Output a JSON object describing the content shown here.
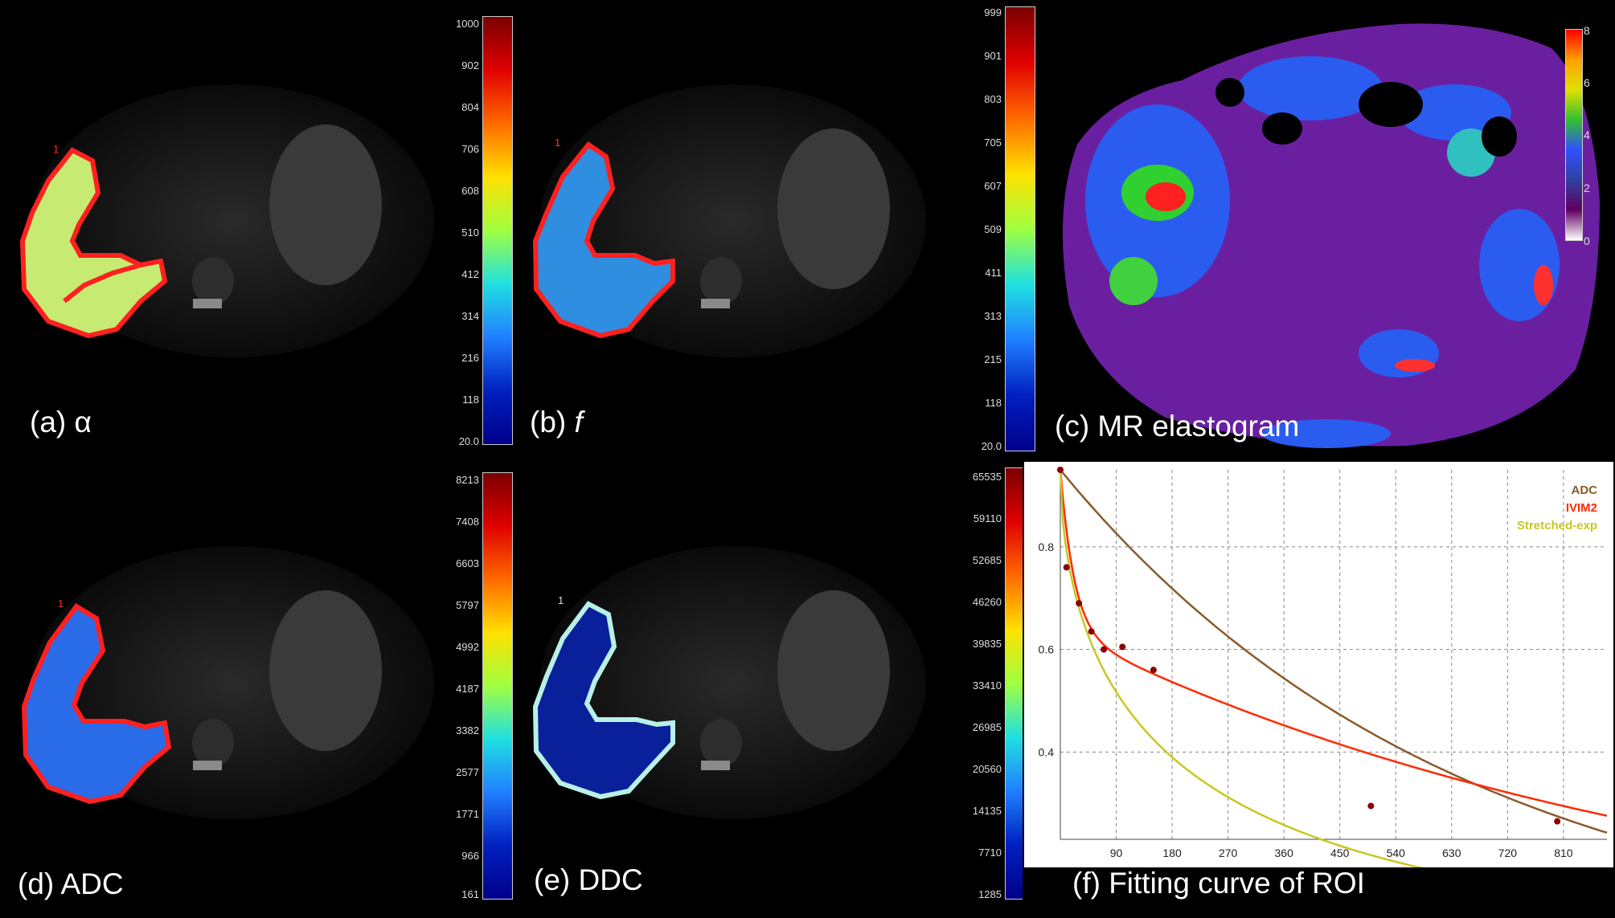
{
  "panels": {
    "a": {
      "label_prefix": "(a) ",
      "label_symbol": "α",
      "roi": "1"
    },
    "b": {
      "label_prefix": "(b) ",
      "label_symbol": "f",
      "roi": "1"
    },
    "c": {
      "label": "(c) MR elastogram"
    },
    "d": {
      "label": "(d) ADC",
      "roi": "1"
    },
    "e": {
      "label": "(e) DDC",
      "roi": "1"
    },
    "f": {
      "label": "(f) Fitting curve of ROI"
    }
  },
  "colorbars": {
    "b": [
      "1000",
      "902",
      "804",
      "706",
      "608",
      "510",
      "412",
      "314",
      "216",
      "118",
      "20.0"
    ],
    "c": [
      "999",
      "901",
      "803",
      "705",
      "607",
      "509",
      "411",
      "313",
      "215",
      "118",
      "20.0"
    ],
    "e": [
      "8213",
      "7408",
      "6603",
      "5797",
      "4992",
      "4187",
      "3382",
      "2577",
      "1771",
      "966",
      "161"
    ],
    "f": [
      "65535",
      "59110",
      "52685",
      "46260",
      "39835",
      "33410",
      "26985",
      "20560",
      "14135",
      "7710",
      "1285"
    ],
    "elast": [
      "8",
      "6",
      "4",
      "2",
      "0"
    ]
  },
  "chart_data": {
    "type": "line",
    "title": "",
    "x_ticks": [
      "90",
      "180",
      "270",
      "360",
      "450",
      "540",
      "630",
      "720",
      "810"
    ],
    "y_ticks": [
      "0.8",
      "0.6",
      "0.4"
    ],
    "xlim": [
      0,
      880
    ],
    "ylim": [
      0.23,
      0.95
    ],
    "series": [
      {
        "name": "ADC",
        "color": "#8b5a2b"
      },
      {
        "name": "IVIM2",
        "color": "#ff2a00"
      },
      {
        "name": "Stretched-exp",
        "color": "#c8c820"
      }
    ],
    "points": [
      [
        0,
        0.95
      ],
      [
        10,
        0.76
      ],
      [
        30,
        0.69
      ],
      [
        50,
        0.635
      ],
      [
        70,
        0.6
      ],
      [
        100,
        0.605
      ],
      [
        150,
        0.56
      ],
      [
        500,
        0.295
      ],
      [
        800,
        0.265
      ]
    ]
  },
  "colors": {
    "roi_red": "#ff2020",
    "roi_cyan": "#b8f0e8"
  }
}
